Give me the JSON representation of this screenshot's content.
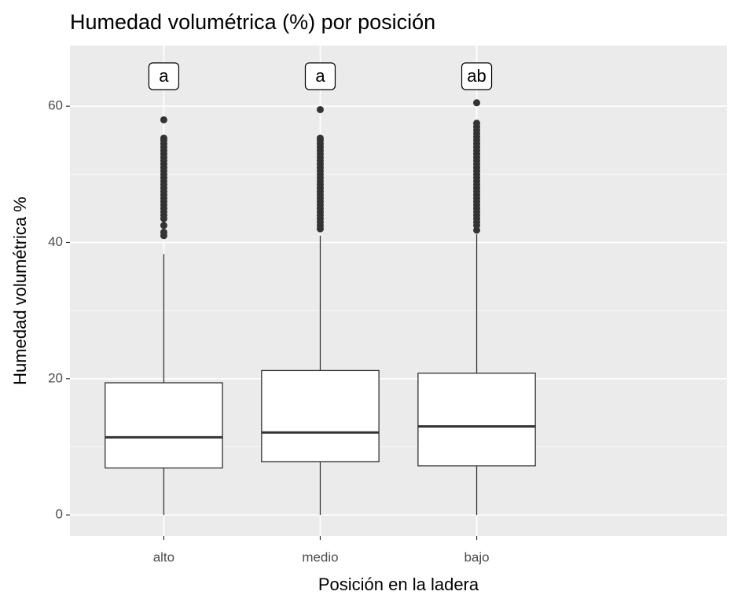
{
  "chart_data": {
    "type": "boxplot",
    "title": "Humedad volumétrica (%) por posición",
    "x_label": "Posición en la ladera",
    "y_label": "Humedad volumétrica %",
    "categories": [
      "alto",
      "medio",
      "bajo"
    ],
    "group_letters": [
      "a",
      "a",
      "ab"
    ],
    "lower_whisker": [
      0,
      0,
      0
    ],
    "q1": [
      6.9,
      7.8,
      7.2
    ],
    "median": [
      11.4,
      12.1,
      13.0
    ],
    "q3": [
      19.4,
      21.2,
      20.8
    ],
    "upper_whisker": [
      38.3,
      41.0,
      41.2
    ],
    "outliers": [
      [
        41,
        41.5,
        42.5,
        43.5,
        44,
        44.5,
        45,
        45.5,
        46,
        46.5,
        47,
        47.5,
        48,
        48.5,
        49,
        49.5,
        50,
        50.5,
        51,
        51.5,
        52,
        52.5,
        53,
        53.5,
        54,
        54.5,
        55,
        55.3,
        58
      ],
      [
        42,
        42.5,
        43,
        43.5,
        44,
        44.5,
        45,
        45.5,
        46,
        46.5,
        47,
        47.5,
        48,
        48.5,
        49,
        49.5,
        50,
        50.5,
        51,
        51.5,
        52,
        52.5,
        53,
        53.5,
        54,
        54.5,
        55,
        55.3,
        59.5
      ],
      [
        41.8,
        42.5,
        43,
        43.5,
        44,
        44.5,
        45,
        45.5,
        46,
        46.5,
        47,
        47.5,
        48,
        48.5,
        49,
        49.5,
        50,
        50.5,
        51,
        51.5,
        52,
        52.5,
        53,
        53.5,
        54,
        54.5,
        55,
        55.5,
        56,
        56.5,
        57,
        57.5,
        60.5
      ]
    ],
    "ylim": [
      -3.1,
      68.9
    ],
    "yticks": [
      0,
      20,
      40,
      60
    ],
    "minor_yticks": [
      10,
      30,
      50
    ],
    "grid": true,
    "panel_color": "#ebebeb",
    "box_fill": "#ffffff",
    "line_color": "#333333"
  }
}
